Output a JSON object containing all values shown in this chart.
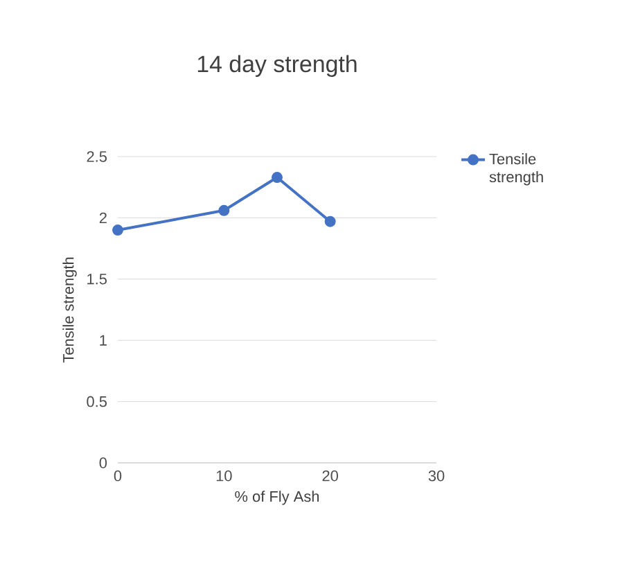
{
  "chart_data": {
    "type": "line",
    "title": "14 day strength",
    "xlabel": "% of Fly Ash",
    "ylabel": "Tensile strength",
    "x": [
      0,
      10,
      15,
      20
    ],
    "series": [
      {
        "name": "Tensile strength",
        "color": "#4472c4",
        "values": [
          1.9,
          2.06,
          2.33,
          1.97
        ]
      }
    ],
    "xlim": [
      0,
      30
    ],
    "ylim": [
      0,
      2.5
    ],
    "xticks": [
      0,
      10,
      20,
      30
    ],
    "yticks": [
      0,
      0.5,
      1,
      1.5,
      2,
      2.5
    ],
    "grid": "y",
    "legend": "right",
    "marker": "circle"
  }
}
